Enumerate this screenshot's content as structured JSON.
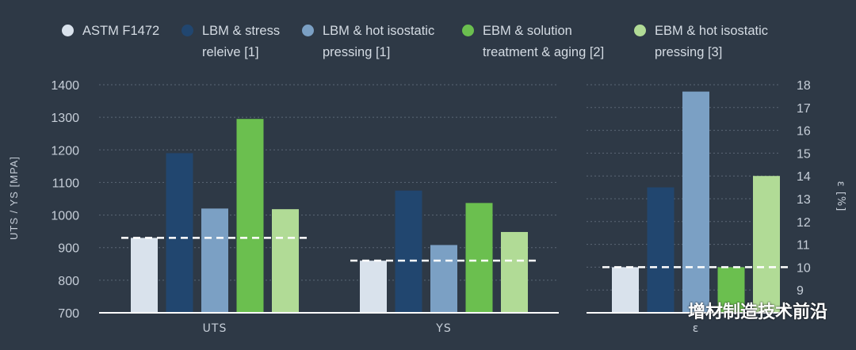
{
  "legend": [
    {
      "label": "ASTM F1472",
      "color": "#d9e2ec"
    },
    {
      "label": "LBM & stress releive [1]",
      "color": "#21466f"
    },
    {
      "label": "LBM & hot isostatic pressing [1]",
      "color": "#7ba0c4"
    },
    {
      "label": "EBM & solution treatment & aging [2]",
      "color": "#6bbf4f"
    },
    {
      "label": "EBM & hot isostatic pressing [3]",
      "color": "#b1db96"
    }
  ],
  "watermark_text": "增材制造技术前沿",
  "chart_data": {
    "type": "bar",
    "left_axis": {
      "label": "UTS / YS [MPA]",
      "ticks": [
        700,
        800,
        900,
        1000,
        1100,
        1200,
        1300,
        1400
      ],
      "ylim": [
        700,
        1400
      ]
    },
    "right_axis": {
      "label": "ε [%]",
      "ticks": [
        9,
        10,
        11,
        12,
        13,
        14,
        15,
        16,
        17,
        18
      ],
      "ylim": [
        8,
        18
      ]
    },
    "groups": [
      {
        "category": "UTS",
        "axis": "left",
        "values": [
          930,
          1190,
          1020,
          1295,
          1018
        ],
        "reference": 930
      },
      {
        "category": "YS",
        "axis": "left",
        "values": [
          860,
          1075,
          908,
          1037,
          948
        ],
        "reference": 860
      },
      {
        "category": "ε",
        "axis": "right",
        "values": [
          10,
          13.5,
          17.7,
          10,
          14
        ],
        "reference": 10
      }
    ],
    "grid": true,
    "legend_position": "top"
  }
}
